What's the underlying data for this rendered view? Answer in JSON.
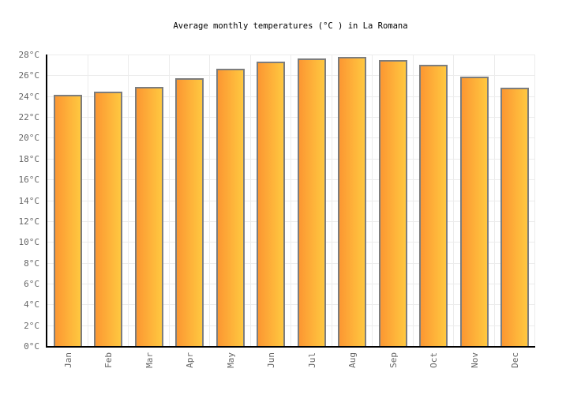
{
  "chart_data": {
    "type": "bar",
    "title": "Average monthly temperatures (°C ) in La Romana",
    "categories": [
      "Jan",
      "Feb",
      "Mar",
      "Apr",
      "May",
      "Jun",
      "Jul",
      "Aug",
      "Sep",
      "Oct",
      "Nov",
      "Dec"
    ],
    "values": [
      24.1,
      24.4,
      24.9,
      25.7,
      26.6,
      27.3,
      27.6,
      27.8,
      27.5,
      27.0,
      25.9,
      24.8
    ],
    "xlabel": "",
    "ylabel": "",
    "ylim": [
      0,
      28
    ],
    "ytick_step": 2,
    "ytick_suffix": "°C",
    "grid": true,
    "legend": "none",
    "colors": {
      "bar_gradient_left": "#FC9732",
      "bar_gradient_right": "#FFC840",
      "bar_border": "#7D7D7D",
      "axis": "#000000",
      "gridline": "#ECECEC",
      "tick_text": "#666666",
      "title_text": "#000000"
    }
  }
}
